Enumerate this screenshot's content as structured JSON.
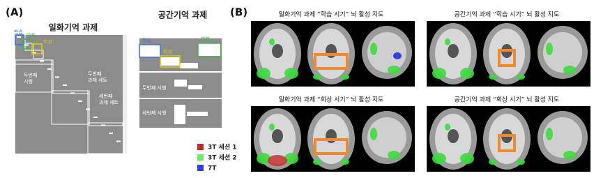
{
  "panel_a": {
    "label": "(A)",
    "episodic": {
      "title": "일화기억 과제",
      "learn": "학습",
      "distract": "방해",
      "recall": "회상",
      "second_trial": [
        "두번째",
        "시행"
      ],
      "second_set": [
        "두번째",
        "과제 세트"
      ],
      "third_set": [
        "세번째",
        "과제 세트"
      ]
    },
    "spatial": {
      "title": "공간기억 과제",
      "learn": "학습",
      "distract": "방해",
      "recall": "회상",
      "second_trial": "두번째 시행",
      "third_trial": "세번째 시행"
    },
    "legend": [
      "3T 세션 1",
      "3T 세션 2",
      "7T"
    ]
  },
  "panel_b": {
    "label": "(B)",
    "maps": [
      "일화기억 과제 “학습 시기” 뇌 활성 지도",
      "공간기억 과제 “학습 시기” 뇌 활성 지도",
      "일화기억 과제 “회상 시기” 뇌 활성 지도",
      "공간기억 과제 “회상 시기” 뇌 활성 지도"
    ]
  }
}
